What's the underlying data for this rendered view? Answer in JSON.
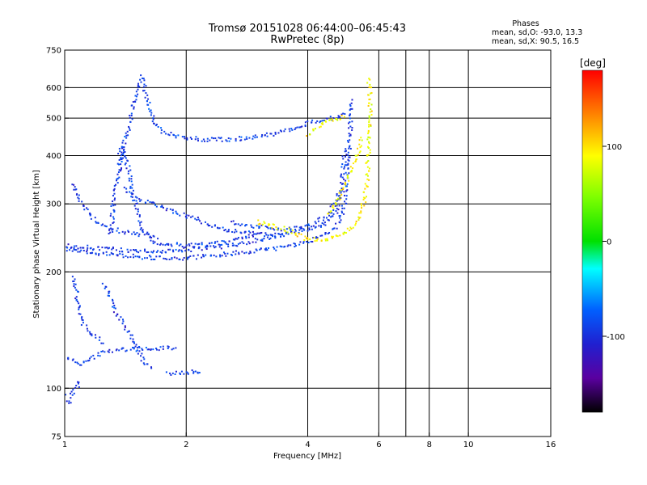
{
  "chart_data": {
    "type": "scatter",
    "title": "Tromsø 20151028 06:44:00–06:45:43",
    "subtitle": "RwPretec (8p)",
    "xlabel": "Frequency [MHz]",
    "ylabel": "Stationary phase Virtual Height [km]",
    "x_scale": "log",
    "y_scale": "log",
    "xlim": [
      1,
      16
    ],
    "ylim": [
      75,
      750
    ],
    "x_ticks": [
      1,
      2,
      4,
      6,
      8,
      10,
      16
    ],
    "x_gridlines": [
      2,
      4,
      6,
      7,
      8,
      10
    ],
    "y_ticks": [
      75,
      100,
      200,
      300,
      400,
      500,
      600,
      750
    ],
    "y_gridlines": [
      100,
      200,
      300,
      400,
      500,
      600
    ],
    "phase_stats": {
      "heading": "Phases",
      "line_o": "mean, sd,O: -93.0, 13.3",
      "line_x": "mean, sd,X:  90.5, 16.5"
    },
    "colorbar": {
      "label": "[deg]",
      "range": [
        -180,
        180
      ],
      "ticks": [
        100,
        0,
        -100
      ],
      "tick_labels": [
        "100",
        "0",
        "-100"
      ]
    },
    "series": [
      {
        "mode": "O",
        "phase_mean": -93.0,
        "traces": [
          {
            "points": [
              [
                1.0,
                230
              ],
              [
                1.1,
                226
              ],
              [
                1.3,
                222
              ],
              [
                1.5,
                219
              ],
              [
                1.7,
                217
              ],
              [
                1.9,
                217
              ],
              [
                2.1,
                218
              ],
              [
                2.5,
                222
              ],
              [
                2.9,
                226
              ],
              [
                3.3,
                230
              ],
              [
                3.7,
                235
              ],
              [
                4.0,
                240
              ],
              [
                4.3,
                246
              ],
              [
                4.6,
                255
              ],
              [
                4.8,
                268
              ],
              [
                4.9,
                290
              ],
              [
                5.0,
                330
              ],
              [
                5.05,
                400
              ],
              [
                5.1,
                470
              ],
              [
                5.1,
                560
              ]
            ]
          },
          {
            "points": [
              [
                1.0,
                234
              ],
              [
                1.2,
                230
              ],
              [
                1.4,
                228
              ],
              [
                1.6,
                226
              ],
              [
                2.0,
                228
              ],
              [
                2.4,
                232
              ],
              [
                2.8,
                238
              ],
              [
                3.2,
                245
              ],
              [
                3.6,
                252
              ],
              [
                4.0,
                258
              ],
              [
                4.4,
                266
              ],
              [
                4.7,
                285
              ],
              [
                4.85,
                330
              ],
              [
                4.95,
                420
              ]
            ]
          },
          {
            "points": [
              [
                1.35,
                380
              ],
              [
                1.4,
                430
              ],
              [
                1.45,
                480
              ],
              [
                1.48,
                540
              ],
              [
                1.52,
                600
              ],
              [
                1.55,
                640
              ],
              [
                1.6,
                560
              ],
              [
                1.65,
                500
              ],
              [
                1.7,
                470
              ],
              [
                1.8,
                455
              ],
              [
                2.0,
                445
              ],
              [
                2.2,
                440
              ],
              [
                2.5,
                440
              ],
              [
                2.9,
                445
              ],
              [
                3.3,
                455
              ],
              [
                3.7,
                470
              ],
              [
                4.1,
                490
              ],
              [
                4.6,
                500
              ],
              [
                5.0,
                520
              ]
            ]
          },
          {
            "points": [
              [
                1.3,
                250
              ],
              [
                1.32,
                300
              ],
              [
                1.35,
                350
              ],
              [
                1.4,
                420
              ],
              [
                1.5,
                300
              ],
              [
                1.55,
                260
              ],
              [
                1.65,
                240
              ],
              [
                1.8,
                236
              ],
              [
                2.0,
                234
              ],
              [
                2.3,
                236
              ],
              [
                2.6,
                240
              ],
              [
                3.0,
                250
              ]
            ]
          },
          {
            "points": [
              [
                1.4,
                330
              ],
              [
                1.5,
                310
              ],
              [
                1.65,
                300
              ],
              [
                1.8,
                290
              ],
              [
                2.0,
                280
              ],
              [
                2.3,
                265
              ],
              [
                2.6,
                255
              ],
              [
                3.0,
                250
              ],
              [
                3.5,
                248
              ]
            ]
          },
          {
            "points": [
              [
                1.05,
                340
              ],
              [
                1.1,
                300
              ],
              [
                1.2,
                270
              ],
              [
                1.3,
                258
              ],
              [
                1.5,
                250
              ],
              [
                1.7,
                246
              ]
            ]
          },
          {
            "points": [
              [
                1.0,
                120
              ],
              [
                1.05,
                118
              ],
              [
                1.1,
                115
              ],
              [
                1.15,
                118
              ],
              [
                1.2,
                122
              ],
              [
                1.3,
                125
              ],
              [
                1.4,
                126
              ],
              [
                1.6,
                126
              ],
              [
                1.8,
                127
              ],
              [
                1.9,
                126
              ]
            ]
          },
          {
            "points": [
              [
                1.05,
                195
              ],
              [
                1.07,
                180
              ],
              [
                1.08,
                165
              ],
              [
                1.1,
                150
              ],
              [
                1.15,
                140
              ],
              [
                1.2,
                135
              ],
              [
                1.25,
                130
              ]
            ]
          },
          {
            "points": [
              [
                1.25,
                185
              ],
              [
                1.3,
                170
              ],
              [
                1.35,
                155
              ],
              [
                1.4,
                145
              ],
              [
                1.45,
                138
              ],
              [
                1.5,
                130
              ],
              [
                1.55,
                120
              ],
              [
                1.6,
                115
              ],
              [
                1.65,
                112
              ]
            ]
          },
          {
            "points": [
              [
                1.0,
                96
              ],
              [
                1.03,
                92
              ],
              [
                1.05,
                98
              ],
              [
                1.08,
                102
              ],
              [
                1.1,
                105
              ]
            ]
          },
          {
            "points": [
              [
                1.8,
                109
              ],
              [
                1.9,
                110
              ],
              [
                2.0,
                110
              ],
              [
                2.1,
                110
              ],
              [
                2.2,
                109
              ]
            ]
          },
          {
            "points": [
              [
                2.6,
                268
              ],
              [
                3.0,
                262
              ],
              [
                3.5,
                258
              ],
              [
                4.0,
                262
              ],
              [
                4.5,
                280
              ],
              [
                4.8,
                320
              ]
            ]
          }
        ]
      },
      {
        "mode": "X",
        "phase_mean": 90.5,
        "traces": [
          {
            "points": [
              [
                3.0,
                270
              ],
              [
                3.2,
                265
              ],
              [
                3.5,
                258
              ],
              [
                3.8,
                250
              ],
              [
                4.0,
                243
              ],
              [
                4.3,
                242
              ],
              [
                4.7,
                246
              ],
              [
                5.0,
                252
              ],
              [
                5.2,
                262
              ],
              [
                5.4,
                280
              ],
              [
                5.5,
                300
              ],
              [
                5.6,
                340
              ],
              [
                5.65,
                400
              ],
              [
                5.7,
                470
              ],
              [
                5.72,
                540
              ],
              [
                5.7,
                600
              ],
              [
                5.65,
                640
              ]
            ]
          },
          {
            "points": [
              [
                4.0,
                450
              ],
              [
                4.2,
                470
              ],
              [
                4.5,
                490
              ],
              [
                4.8,
                500
              ],
              [
                5.0,
                510
              ]
            ]
          },
          {
            "points": [
              [
                4.5,
                280
              ],
              [
                4.7,
                300
              ],
              [
                4.9,
                330
              ],
              [
                5.1,
                360
              ],
              [
                5.3,
                400
              ],
              [
                5.45,
                450
              ]
            ]
          }
        ]
      }
    ]
  }
}
